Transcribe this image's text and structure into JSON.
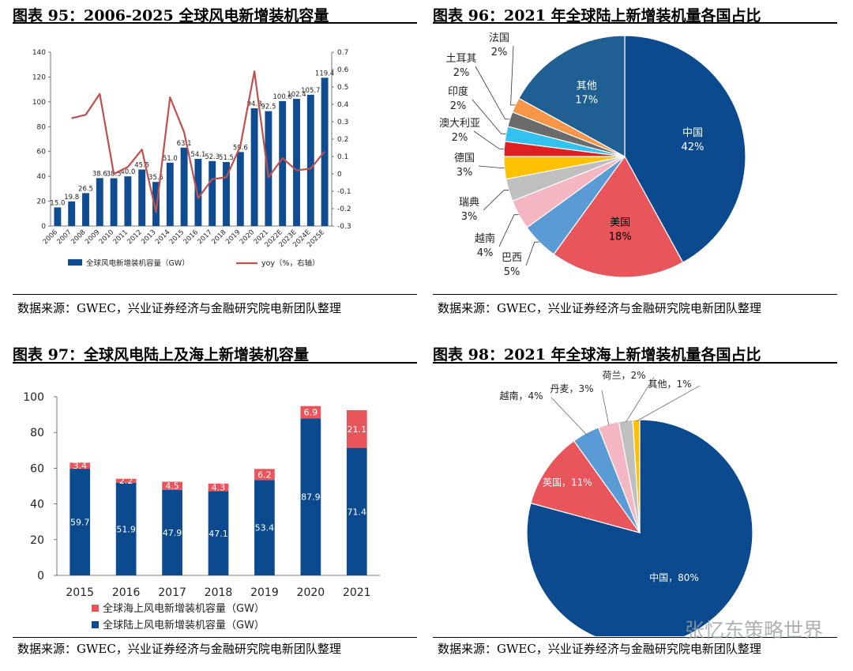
{
  "panels": [
    {
      "title": "图表 95：2006-2025 全球风电新增装机容量",
      "source": "数据来源：GWEC，兴业证券经济与金融研究院电新团队整理"
    },
    {
      "title": "图表 96：2021 年全球陆上新增装机量各国占比",
      "source": "数据来源：GWEC，兴业证券经济与金融研究院电新团队整理"
    },
    {
      "title": "图表 97：全球风电陆上及海上新增装机容量",
      "source": "数据来源：GWEC，兴业证券经济与金融研究院电新团队整理"
    },
    {
      "title": "图表 98：2021 年全球海上新增装机量各国占比",
      "source": "数据来源：GWEC，兴业证券经济与金融研究院电新团队整理"
    }
  ],
  "watermark": "张忆东策略世界",
  "colors": {
    "navy": "#0f4c92",
    "darkblue": "#0b4a8f",
    "red": "#e8555b",
    "line": "#c0504d"
  },
  "chart_data": [
    {
      "type": "bar",
      "title": "2006-2025 全球风电新增装机容量",
      "categories": [
        "2006",
        "2007",
        "2008",
        "2009",
        "2010",
        "2011",
        "2012",
        "2013",
        "2014",
        "2015",
        "2016",
        "2017",
        "2018",
        "2019",
        "2020",
        "2021",
        "2022E",
        "2023E",
        "2024E",
        "2025E"
      ],
      "series": [
        {
          "name": "全球风电新增装机容量（GW）",
          "values": [
            15.0,
            19.8,
            26.5,
            38.6,
            38.5,
            40.0,
            45.5,
            35.5,
            51.0,
            63.1,
            54.1,
            52.3,
            51.5,
            59.6,
            94.8,
            92.5,
            100.6,
            102.4,
            105.7,
            119.4
          ],
          "labels": [
            "15.0",
            "19.8",
            "26.5",
            "38.6",
            "38.5",
            "40.0",
            "45.5",
            "35.5",
            "51.0",
            "63.1",
            "54.1",
            "52.3",
            "51.5",
            "59.6",
            "94.8",
            "92.5",
            "100.6",
            "102.4",
            "105.7",
            "119.4"
          ]
        },
        {
          "name": "yoy（%，右轴）",
          "type": "line",
          "values": [
            null,
            0.32,
            0.34,
            0.46,
            0.0,
            0.04,
            0.14,
            -0.22,
            0.44,
            0.24,
            -0.14,
            -0.03,
            -0.02,
            0.16,
            0.59,
            -0.02,
            0.09,
            0.02,
            0.03,
            0.13
          ]
        }
      ],
      "ylim": [
        0,
        140
      ],
      "yticks": [
        "0",
        "20",
        "40",
        "60",
        "80",
        "100",
        "120",
        "140"
      ],
      "y2lim": [
        -0.3,
        0.7
      ],
      "y2ticks": [
        "-0.3",
        "-0.2",
        "-0.1",
        "0",
        "0.1",
        "0.2",
        "0.3",
        "0.4",
        "0.5",
        "0.6",
        "0.7"
      ],
      "legend": "bottom"
    },
    {
      "type": "pie",
      "title": "2021 年全球陆上新增装机量各国占比",
      "slices": [
        {
          "name": "中国",
          "value": 42,
          "label": "42%",
          "color": "#0b4a8f"
        },
        {
          "name": "美国",
          "value": 18,
          "label": "18%",
          "color": "#e8555b"
        },
        {
          "name": "巴西",
          "value": 5,
          "label": "5%",
          "color": "#5b9bd5"
        },
        {
          "name": "越南",
          "value": 4,
          "label": "4%",
          "color": "#f4b6c2"
        },
        {
          "name": "瑞典",
          "value": 3,
          "label": "3%",
          "color": "#bfbfbf"
        },
        {
          "name": "德国",
          "value": 3,
          "label": "3%",
          "color": "#ffc000"
        },
        {
          "name": "澳大利亚",
          "value": 2,
          "label": "2%",
          "color": "#e02020"
        },
        {
          "name": "印度",
          "value": 2,
          "label": "2%",
          "color": "#33c1f0"
        },
        {
          "name": "土耳其",
          "value": 2,
          "label": "2%",
          "color": "#6b6b6b"
        },
        {
          "name": "法国",
          "value": 2,
          "label": "2%",
          "color": "#f79646"
        },
        {
          "name": "其他",
          "value": 17,
          "label": "17%",
          "color": "#1f5f94"
        }
      ]
    },
    {
      "type": "bar",
      "stacked": true,
      "title": "全球风电陆上及海上新增装机容量",
      "categories": [
        "2015",
        "2016",
        "2017",
        "2018",
        "2019",
        "2020",
        "2021"
      ],
      "series": [
        {
          "name": "全球陆上风电新增装机容量（GW）",
          "values": [
            59.7,
            51.9,
            47.9,
            47.1,
            53.4,
            87.9,
            71.4
          ],
          "labels": [
            "59.7",
            "51.9",
            "47.9",
            "47.1",
            "53.4",
            "87.9",
            "71.4"
          ]
        },
        {
          "name": "全球海上风电新增装机容量（GW）",
          "values": [
            3.4,
            2.2,
            4.5,
            4.3,
            6.2,
            6.9,
            21.1
          ],
          "labels": [
            "3.4",
            "2.2",
            "4.5",
            "4.3",
            "6.2",
            "6.9",
            "21.1"
          ]
        }
      ],
      "ylim": [
        0,
        100
      ],
      "yticks": [
        "0",
        "20",
        "40",
        "60",
        "80",
        "100"
      ],
      "legend": "bottom"
    },
    {
      "type": "pie",
      "title": "2021 年全球海上新增装机量各国占比",
      "slices": [
        {
          "name": "中国",
          "value": 80,
          "label": "中国，80%",
          "color": "#0b4a8f"
        },
        {
          "name": "英国",
          "value": 11,
          "label": "英国，11%",
          "color": "#e8555b"
        },
        {
          "name": "越南",
          "value": 4,
          "label": "越南，4%",
          "color": "#5b9bd5"
        },
        {
          "name": "丹麦",
          "value": 3,
          "label": "丹麦，3%",
          "color": "#f4b6c2"
        },
        {
          "name": "荷兰",
          "value": 2,
          "label": "荷兰，2%",
          "color": "#bfbfbf"
        },
        {
          "name": "其他",
          "value": 1,
          "label": "其他，1%",
          "color": "#ffc000"
        }
      ]
    }
  ]
}
